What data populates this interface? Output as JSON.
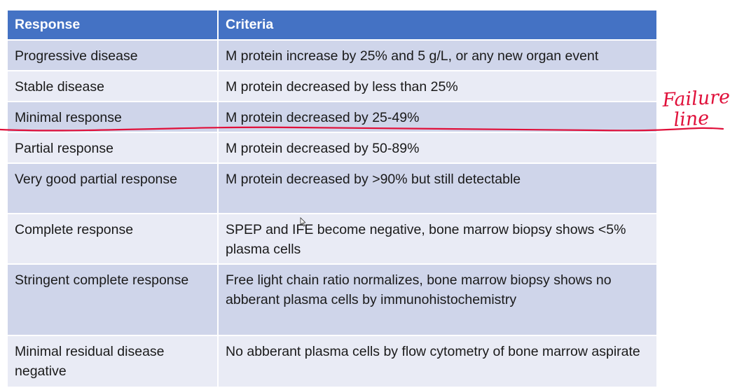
{
  "table": {
    "headers": [
      "Response",
      "Criteria"
    ],
    "rows": [
      {
        "response": "Progressive disease",
        "criteria": "M protein increase by 25% and 5 g/L, or any new organ event"
      },
      {
        "response": "Stable disease",
        "criteria": "M protein decreased by less than 25%"
      },
      {
        "response": "Minimal response",
        "criteria": "M protein decreased by 25-49%"
      },
      {
        "response": "Partial response",
        "criteria": "M protein decreased by 50-89%"
      },
      {
        "response": "Very good partial response",
        "criteria": "M protein decreased by >90% but still detectable"
      },
      {
        "response": "Complete response",
        "criteria": "SPEP and IFE become negative, bone marrow biopsy shows <5% plasma cells"
      },
      {
        "response": "Stringent complete response",
        "criteria": "Free light chain ratio normalizes, bone marrow biopsy shows no abberant plasma cells by immunohistochemistry"
      },
      {
        "response": "Minimal residual disease negative",
        "criteria": "No abberant plasma cells by flow cytometry of bone marrow aspirate"
      }
    ]
  },
  "annotation": {
    "text": "Failure line",
    "color": "#E0103A"
  },
  "colors": {
    "header_bg": "#4472C4",
    "row_odd_bg": "#CFD5EA",
    "row_even_bg": "#E9EBF5"
  }
}
